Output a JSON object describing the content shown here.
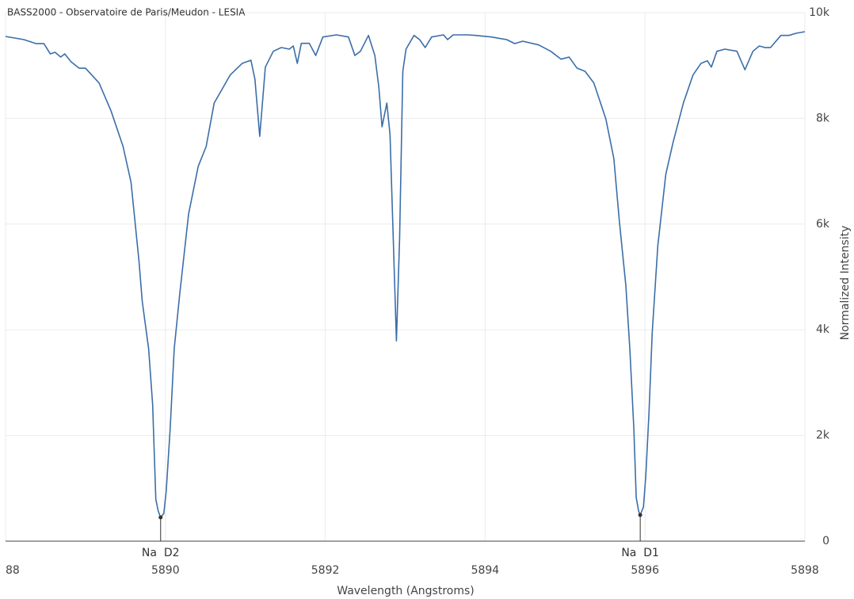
{
  "chart_data": {
    "type": "line",
    "title": "BASS2000 - Observatoire de Paris/Meudon - LESIA",
    "x_label": "Wavelength (Angstroms)",
    "y_label": "Normalized Intensity",
    "xlim": [
      5888,
      5898
    ],
    "xticks": [
      {
        "value": 5888,
        "label": "88"
      },
      5890,
      5892,
      5894,
      5896,
      5898
    ],
    "ylim": [
      0,
      10000
    ],
    "yticks": [
      0,
      {
        "value": 2000,
        "label": "2k"
      },
      {
        "value": 4000,
        "label": "4k"
      },
      {
        "value": 6000,
        "label": "6k"
      },
      {
        "value": 8000,
        "label": "8k"
      },
      {
        "value": 10000,
        "label": "10k"
      }
    ],
    "grid": true,
    "y_axis_side": "right",
    "x": [
      5888.0,
      5888.23,
      5888.38,
      5888.48,
      5888.56,
      5888.62,
      5888.69,
      5888.74,
      5888.82,
      5888.92,
      5889.0,
      5889.17,
      5889.32,
      5889.47,
      5889.57,
      5889.67,
      5889.71,
      5889.79,
      5889.84,
      5889.88,
      5889.91,
      5889.94,
      5889.98,
      5890.01,
      5890.06,
      5890.11,
      5890.18,
      5890.29,
      5890.41,
      5890.51,
      5890.61,
      5890.81,
      5890.96,
      5891.07,
      5891.12,
      5891.18,
      5891.25,
      5891.35,
      5891.45,
      5891.55,
      5891.6,
      5891.65,
      5891.7,
      5891.8,
      5891.88,
      5891.97,
      5892.14,
      5892.29,
      5892.37,
      5892.44,
      5892.54,
      5892.62,
      5892.67,
      5892.71,
      5892.77,
      5892.81,
      5892.85,
      5892.89,
      5892.93,
      5892.97,
      5893.01,
      5893.11,
      5893.18,
      5893.25,
      5893.33,
      5893.48,
      5893.53,
      5893.6,
      5893.78,
      5893.88,
      5894.08,
      5894.27,
      5894.37,
      5894.47,
      5894.67,
      5894.82,
      5894.95,
      5895.05,
      5895.15,
      5895.25,
      5895.36,
      5895.51,
      5895.61,
      5895.68,
      5895.76,
      5895.81,
      5895.86,
      5895.89,
      5895.92,
      5895.94,
      5895.98,
      5896.01,
      5896.05,
      5896.09,
      5896.16,
      5896.26,
      5896.35,
      5896.48,
      5896.6,
      5896.7,
      5896.78,
      5896.83,
      5896.9,
      5897.0,
      5897.15,
      5897.25,
      5897.35,
      5897.43,
      5897.5,
      5897.57,
      5897.7,
      5897.8,
      5897.89,
      5898.0
    ],
    "series": [
      {
        "color": "#3b6ea8",
        "values": [
          9550,
          9490,
          9415,
          9415,
          9220,
          9250,
          9160,
          9220,
          9070,
          8950,
          8950,
          8670,
          8140,
          7470,
          6790,
          5290,
          4540,
          3640,
          2590,
          795,
          570,
          450,
          525,
          945,
          2140,
          3640,
          4690,
          6190,
          7090,
          7470,
          8290,
          8820,
          9040,
          9100,
          8740,
          7660,
          8970,
          9270,
          9340,
          9310,
          9370,
          9040,
          9420,
          9420,
          9190,
          9540,
          9580,
          9540,
          9190,
          9270,
          9570,
          9190,
          8590,
          7840,
          8290,
          7690,
          5740,
          3790,
          5740,
          8890,
          9310,
          9570,
          9490,
          9340,
          9540,
          9580,
          9490,
          9580,
          9580,
          9570,
          9540,
          9490,
          9415,
          9460,
          9390,
          9270,
          9120,
          9160,
          8950,
          8890,
          8670,
          7990,
          7240,
          6040,
          4840,
          3640,
          2140,
          825,
          570,
          495,
          645,
          1240,
          2440,
          3940,
          5590,
          6940,
          7540,
          8290,
          8820,
          9040,
          9090,
          8970,
          9270,
          9310,
          9270,
          8920,
          9270,
          9370,
          9340,
          9340,
          9570,
          9570,
          9610,
          9640
        ]
      }
    ],
    "annotations": [
      {
        "text": "Na  D2",
        "x": 5889.94,
        "y": 450
      },
      {
        "text": "Na  D1",
        "x": 5895.94,
        "y": 495
      }
    ]
  }
}
